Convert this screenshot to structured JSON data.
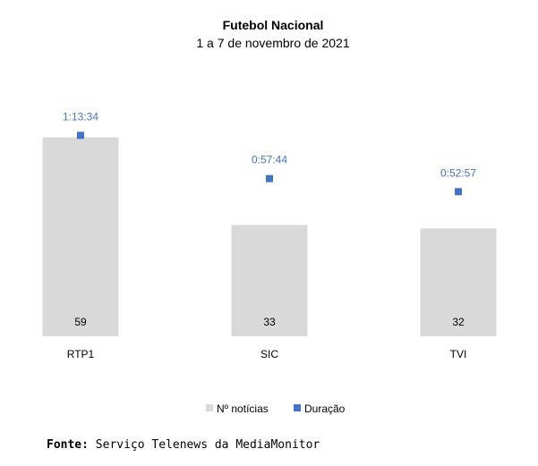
{
  "chart_data": {
    "type": "bar",
    "title": "Futebol Nacional",
    "subtitle": "1 a 7 de novembro de 2021",
    "categories": [
      "RTP1",
      "SIC",
      "TVI"
    ],
    "series": [
      {
        "name": "Nº notícias",
        "kind": "bar",
        "color": "#d9d9d9",
        "values": [
          59,
          33,
          32
        ]
      },
      {
        "name": "Duração",
        "kind": "marker",
        "color": "#4472c4",
        "values_seconds": [
          4414,
          3464,
          3177
        ],
        "labels": [
          "1:13:34",
          "0:57:44",
          "0:52:57"
        ]
      }
    ],
    "legend": "bottom-center",
    "grid": false
  },
  "source": {
    "label": "Fonte:",
    "text": "Serviço Telenews da MediaMonitor"
  }
}
